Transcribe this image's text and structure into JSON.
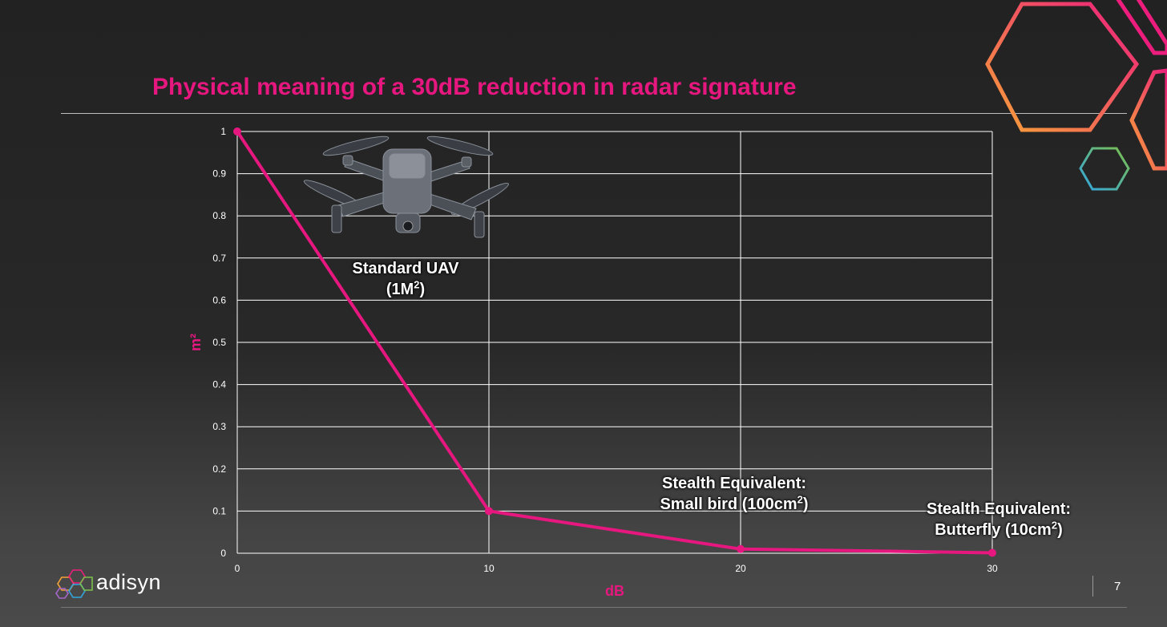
{
  "slide": {
    "title": "Physical meaning of a 30dB reduction in radar signature",
    "page_number": "7",
    "logo_text": "adisyn"
  },
  "colors": {
    "accent": "#e6177f",
    "background": "#262626",
    "grid": "#ffffff",
    "text": "#ffffff"
  },
  "icons": [
    "drone-image",
    "adisyn-hexagon-logo",
    "decorative-hexagons"
  ],
  "chart_data": {
    "type": "line",
    "xlabel": "dB",
    "ylabel": "m²",
    "x_ticks": [
      "0",
      "10",
      "20",
      "30"
    ],
    "y_ticks": [
      "0",
      "0.1",
      "0.2",
      "0.3",
      "0.4",
      "0.5",
      "0.6",
      "0.7",
      "0.8",
      "0.9",
      "1"
    ],
    "xlim": [
      0,
      30
    ],
    "ylim": [
      0,
      1
    ],
    "grid": true,
    "series": [
      {
        "x": [
          0,
          10,
          20,
          30
        ],
        "values": [
          1,
          0.1,
          0.01,
          0.001
        ],
        "color": "#e6177f"
      }
    ],
    "annotations": [
      {
        "id": "uav",
        "lines": [
          "Standard UAV",
          "(1M²)"
        ]
      },
      {
        "id": "bird",
        "lines": [
          "Stealth Equivalent:",
          "Small bird (100cm²)"
        ]
      },
      {
        "id": "butterfly",
        "lines": [
          "Stealth Equivalent:",
          "Butterfly (10cm²)"
        ]
      }
    ]
  }
}
